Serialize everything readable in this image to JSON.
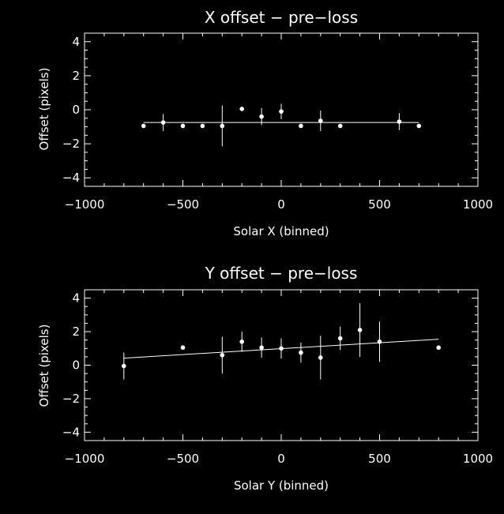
{
  "colors": {
    "background": "#000000",
    "foreground": "#ffffff"
  },
  "chart_data": [
    {
      "type": "scatter",
      "title": "X offset − pre−loss",
      "xlabel": "Solar X (binned)",
      "ylabel": "Offset (pixels)",
      "xlim": [
        -1000,
        1000
      ],
      "ylim": [
        -4.5,
        4.5
      ],
      "x_ticks": [
        -1000,
        -500,
        0,
        500,
        1000
      ],
      "x_tick_labels": [
        "−1000",
        "−500",
        "0",
        "500",
        "1000"
      ],
      "y_ticks": [
        -4,
        -2,
        0,
        2,
        4
      ],
      "y_tick_labels": [
        "−4",
        "−2",
        "0",
        "2",
        "4"
      ],
      "grid": false,
      "series": [
        {
          "points": [
            {
              "x": -700,
              "y": -0.95,
              "err": 0
            },
            {
              "x": -600,
              "y": -0.75,
              "err": 0.5
            },
            {
              "x": -500,
              "y": -0.95,
              "err": 0
            },
            {
              "x": -400,
              "y": -0.95,
              "err": 0
            },
            {
              "x": -300,
              "y": -0.95,
              "err": 1.2
            },
            {
              "x": -200,
              "y": 0.05,
              "err": 0
            },
            {
              "x": -100,
              "y": -0.4,
              "err": 0.5
            },
            {
              "x": 0,
              "y": -0.1,
              "err": 0.45
            },
            {
              "x": 100,
              "y": -0.95,
              "err": 0
            },
            {
              "x": 200,
              "y": -0.65,
              "err": 0.6
            },
            {
              "x": 300,
              "y": -0.95,
              "err": 0
            },
            {
              "x": 600,
              "y": -0.7,
              "err": 0.5
            },
            {
              "x": 700,
              "y": -0.95,
              "err": 0
            }
          ]
        }
      ],
      "fit_line": {
        "x": [
          -700,
          700
        ],
        "y": [
          -0.75,
          -0.75
        ]
      }
    },
    {
      "type": "scatter",
      "title": "Y offset − pre−loss",
      "xlabel": "Solar Y (binned)",
      "ylabel": "Offset (pixels)",
      "xlim": [
        -1000,
        1000
      ],
      "ylim": [
        -4.5,
        4.5
      ],
      "x_ticks": [
        -1000,
        -500,
        0,
        500,
        1000
      ],
      "x_tick_labels": [
        "−1000",
        "−500",
        "0",
        "500",
        "1000"
      ],
      "y_ticks": [
        -4,
        -2,
        0,
        2,
        4
      ],
      "y_tick_labels": [
        "−4",
        "−2",
        "0",
        "2",
        "4"
      ],
      "grid": false,
      "series": [
        {
          "points": [
            {
              "x": -800,
              "y": -0.05,
              "err": 0.8
            },
            {
              "x": -500,
              "y": 1.05,
              "err": 0
            },
            {
              "x": -300,
              "y": 0.6,
              "err": 1.1
            },
            {
              "x": -200,
              "y": 1.4,
              "err": 0.6
            },
            {
              "x": -100,
              "y": 1.05,
              "err": 0.6
            },
            {
              "x": 0,
              "y": 1.0,
              "err": 0.6
            },
            {
              "x": 100,
              "y": 0.75,
              "err": 0.6
            },
            {
              "x": 200,
              "y": 0.45,
              "err": 1.3
            },
            {
              "x": 300,
              "y": 1.6,
              "err": 0.7
            },
            {
              "x": 400,
              "y": 2.1,
              "err": 1.6
            },
            {
              "x": 500,
              "y": 1.4,
              "err": 1.2
            },
            {
              "x": 800,
              "y": 1.05,
              "err": 0
            }
          ]
        }
      ],
      "fit_line": {
        "x": [
          -800,
          800
        ],
        "y": [
          0.42,
          1.55
        ]
      }
    }
  ]
}
